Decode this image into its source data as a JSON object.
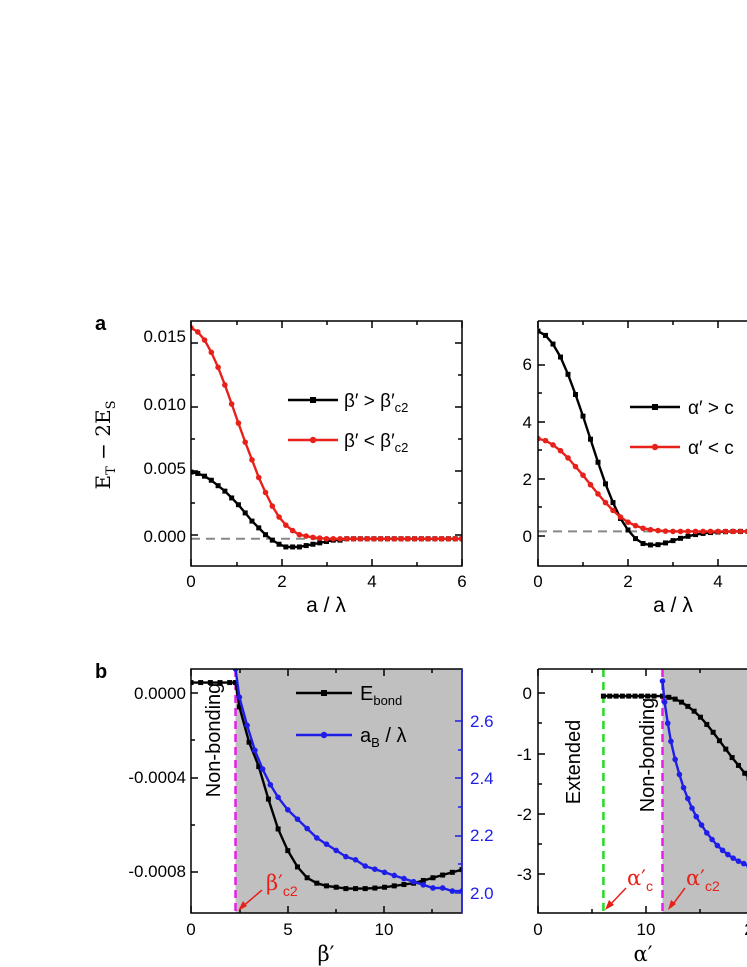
{
  "chart_data": [
    {
      "type": "line",
      "panel_label": "a",
      "xlabel": "a / λ",
      "ylabel": "E",
      "ylabel_sub1": "T",
      "ylabel_mid": " − 2E",
      "ylabel_sub2": "S",
      "xlim": [
        0,
        6
      ],
      "ylim": [
        -0.002,
        0.016
      ],
      "xticks": [
        "0",
        "2",
        "4",
        "6"
      ],
      "yticks": [
        "0.000",
        "0.005",
        "0.010",
        "0.015"
      ],
      "legend": "right",
      "series": [
        {
          "name": "β′ > β′",
          "name_sub": "c2",
          "color": "#000000",
          "marker": "square",
          "x": [
            0,
            0.15,
            0.3,
            0.45,
            0.6,
            0.75,
            0.9,
            1.05,
            1.2,
            1.35,
            1.5,
            1.65,
            1.8,
            1.95,
            2.1,
            2.25,
            2.4,
            2.55,
            2.7,
            2.85,
            3.0,
            3.15,
            3.3,
            3.45,
            3.6,
            3.75,
            3.9,
            4.05,
            4.2,
            4.35,
            4.5,
            4.65,
            4.8,
            4.95,
            5.1,
            5.25,
            5.4,
            5.55,
            5.7,
            5.85,
            6.0
          ],
          "y": [
            0.0049,
            0.0048,
            0.0046,
            0.0043,
            0.0039,
            0.0035,
            0.003,
            0.0025,
            0.0019,
            0.0013,
            0.0008,
            0.0003,
            -0.0001,
            -0.0004,
            -0.0006,
            -0.0006,
            -0.0006,
            -0.0005,
            -0.0004,
            -0.0003,
            -0.0002,
            -0.0001,
            -0.0001,
            0,
            0,
            0,
            0,
            0,
            0,
            0,
            0,
            0,
            0,
            0,
            0,
            0,
            0,
            0,
            0,
            0,
            0
          ]
        },
        {
          "name": "β′ < β′",
          "name_sub": "c2",
          "color": "#e8201a",
          "marker": "circle",
          "x": [
            0,
            0.15,
            0.3,
            0.45,
            0.6,
            0.75,
            0.9,
            1.05,
            1.2,
            1.35,
            1.5,
            1.65,
            1.8,
            1.95,
            2.1,
            2.25,
            2.4,
            2.55,
            2.7,
            2.85,
            3.0,
            3.15,
            3.3,
            3.45,
            3.6,
            3.75,
            3.9,
            4.05,
            4.2,
            4.35,
            4.5,
            4.65,
            4.8,
            4.95,
            5.1,
            5.25,
            5.4,
            5.55,
            5.7,
            5.85,
            6.0
          ],
          "y": [
            0.0155,
            0.0152,
            0.0146,
            0.0137,
            0.0126,
            0.0113,
            0.0099,
            0.0085,
            0.0071,
            0.0058,
            0.0045,
            0.0034,
            0.0024,
            0.0016,
            0.001,
            0.0006,
            0.0003,
            0.0002,
            0.0001,
            5e-05,
            0,
            0,
            0,
            0,
            0,
            0,
            0,
            0,
            0,
            0,
            0,
            0,
            0,
            0,
            0,
            0,
            0,
            0,
            0,
            0,
            0
          ]
        }
      ]
    },
    {
      "type": "line",
      "xlabel": "a / λ",
      "xlim": [
        0,
        6
      ],
      "ylim": [
        -1.2,
        7.3
      ],
      "xticks": [
        "0",
        "2",
        "4"
      ],
      "yticks": [
        "0",
        "2",
        "4",
        "6"
      ],
      "series": [
        {
          "name": "α′ > c",
          "color": "#000000",
          "marker": "square",
          "x": [
            0,
            0.15,
            0.3,
            0.45,
            0.6,
            0.75,
            0.9,
            1.05,
            1.2,
            1.35,
            1.5,
            1.65,
            1.8,
            1.95,
            2.1,
            2.25,
            2.4,
            2.55,
            2.7,
            2.85,
            3.0,
            3.15,
            3.3,
            3.45,
            3.6,
            3.75,
            3.9,
            4.05,
            4.2,
            4.35,
            4.5,
            4.65,
            4.8
          ],
          "y": [
            6.95,
            6.8,
            6.5,
            6.05,
            5.45,
            4.75,
            4.0,
            3.2,
            2.4,
            1.65,
            1.0,
            0.45,
            0.05,
            -0.25,
            -0.42,
            -0.47,
            -0.46,
            -0.4,
            -0.32,
            -0.24,
            -0.17,
            -0.11,
            -0.07,
            -0.04,
            -0.02,
            -0.01,
            0,
            0,
            0,
            0,
            0,
            0,
            0
          ]
        },
        {
          "name": "α′ < c",
          "color": "#e8201a",
          "marker": "circle",
          "x": [
            0,
            0.15,
            0.3,
            0.45,
            0.6,
            0.75,
            0.9,
            1.05,
            1.2,
            1.35,
            1.5,
            1.65,
            1.8,
            1.95,
            2.1,
            2.25,
            2.4,
            2.55,
            2.7,
            2.85,
            3.0,
            3.15,
            3.3,
            3.45,
            3.6,
            3.75,
            3.9,
            4.05,
            4.2,
            4.35,
            4.5,
            4.65,
            4.8
          ],
          "y": [
            3.22,
            3.15,
            3.0,
            2.8,
            2.55,
            2.25,
            1.95,
            1.62,
            1.3,
            1.0,
            0.73,
            0.5,
            0.32,
            0.2,
            0.11,
            0.06,
            0.03,
            0.01,
            0,
            0,
            0,
            0,
            0,
            0,
            0,
            0,
            0,
            0,
            0,
            0,
            0,
            0,
            0
          ]
        }
      ]
    },
    {
      "type": "line",
      "panel_label": "b",
      "xlabel": "β′",
      "xlim": [
        0,
        14
      ],
      "ylim": [
        -0.00085,
        5e-05
      ],
      "y2lim": [
        1.95,
        2.73
      ],
      "xticks": [
        "0",
        "5",
        "10"
      ],
      "yticks": [
        "0.0000",
        "-0.0004",
        "-0.0008"
      ],
      "y2ticks": [
        "2.0",
        "2.2",
        "2.4",
        "2.6"
      ],
      "regions": {
        "left": "Non-bonding",
        "shade_from": 2.3
      },
      "vline": {
        "x": 2.3,
        "color": "#e81ee8"
      },
      "annotations": [
        {
          "text": "β′",
          "sub": "c2",
          "color": "#e8201a"
        }
      ],
      "series": [
        {
          "name": "E",
          "name_sub": "bond",
          "axis": "left",
          "color": "#000000",
          "marker": "square",
          "x": [
            0,
            0.5,
            1.0,
            1.5,
            2.0,
            2.3,
            2.5,
            3.0,
            3.5,
            4.0,
            4.5,
            5.0,
            5.5,
            6.0,
            6.5,
            7.0,
            7.5,
            8.0,
            8.5,
            9.0,
            9.5,
            10.0,
            10.5,
            11.0,
            11.5,
            12.0,
            12.5,
            13.0,
            13.5,
            14.0
          ],
          "y": [
            0,
            0,
            0,
            0,
            0,
            0,
            -9e-05,
            -0.00022,
            -0.00031,
            -0.00043,
            -0.00054,
            -0.00062,
            -0.00068,
            -0.00072,
            -0.00074,
            -0.00075,
            -0.000755,
            -0.00076,
            -0.00076,
            -0.00076,
            -0.000758,
            -0.000755,
            -0.00075,
            -0.000745,
            -0.00074,
            -0.00073,
            -0.00072,
            -0.00071,
            -0.0007,
            -0.00069
          ]
        },
        {
          "name": "a",
          "name_sub": "B",
          "name_tail": " / λ",
          "axis": "right",
          "color": "#1e1ee8",
          "marker": "circle",
          "x": [
            2.3,
            2.5,
            2.9,
            3.3,
            3.7,
            4.1,
            4.5,
            5.0,
            5.5,
            6.0,
            6.5,
            7.0,
            7.5,
            8.0,
            8.5,
            9.0,
            9.5,
            10.0,
            10.5,
            11.0,
            11.5,
            12.0,
            12.5,
            13.0,
            13.5,
            14.0
          ],
          "y": [
            2.73,
            2.64,
            2.55,
            2.47,
            2.41,
            2.36,
            2.32,
            2.28,
            2.25,
            2.22,
            2.19,
            2.17,
            2.15,
            2.13,
            2.12,
            2.1,
            2.09,
            2.08,
            2.07,
            2.06,
            2.05,
            2.04,
            2.03,
            2.03,
            2.02,
            2.02
          ]
        }
      ]
    },
    {
      "type": "line",
      "xlabel": "α′",
      "xlim": [
        0,
        20
      ],
      "ylim": [
        -3.6,
        0.45
      ],
      "xticks": [
        "0",
        "10",
        "2"
      ],
      "yticks": [
        "0",
        "-1",
        "-2",
        "-3"
      ],
      "regions": {
        "left": "Extended",
        "middle": "Non-bonding",
        "shade_from": 11.8
      },
      "vlines": [
        {
          "x": 6.2,
          "color": "#22dd22"
        },
        {
          "x": 11.8,
          "color": "#e81ee8"
        }
      ],
      "annotations": [
        {
          "text": "α′",
          "sub": "c",
          "color": "#e8201a"
        },
        {
          "text": "α′",
          "sub": "c2",
          "color": "#e8201a"
        }
      ],
      "series": [
        {
          "name": "black",
          "color": "#000000",
          "marker": "square",
          "x": [
            6.2,
            6.8,
            7.4,
            8.0,
            8.6,
            9.2,
            9.8,
            10.4,
            11.0,
            11.8,
            12.4,
            13.0,
            13.6,
            14.2,
            14.8,
            15.4,
            16.0,
            16.6,
            17.2,
            17.8,
            18.4,
            19.0,
            19.6,
            20.0
          ],
          "y": [
            0,
            0,
            0,
            0,
            0,
            0,
            0,
            0,
            0,
            0,
            -0.02,
            -0.05,
            -0.1,
            -0.17,
            -0.25,
            -0.35,
            -0.47,
            -0.6,
            -0.74,
            -0.88,
            -1.02,
            -1.15,
            -1.28,
            -1.36
          ]
        },
        {
          "name": "blue",
          "color": "#1e1ee8",
          "marker": "circle",
          "x": [
            11.8,
            12.0,
            12.3,
            12.6,
            13.0,
            13.4,
            13.8,
            14.2,
            14.6,
            15.0,
            15.5,
            16.0,
            16.5,
            17.0,
            17.5,
            18.0,
            18.5,
            19.0,
            19.5,
            20.0
          ],
          "y": [
            0.25,
            -0.1,
            -0.45,
            -0.75,
            -1.05,
            -1.3,
            -1.52,
            -1.7,
            -1.86,
            -2.0,
            -2.14,
            -2.27,
            -2.38,
            -2.48,
            -2.56,
            -2.63,
            -2.69,
            -2.74,
            -2.78,
            -2.82
          ]
        }
      ]
    }
  ]
}
